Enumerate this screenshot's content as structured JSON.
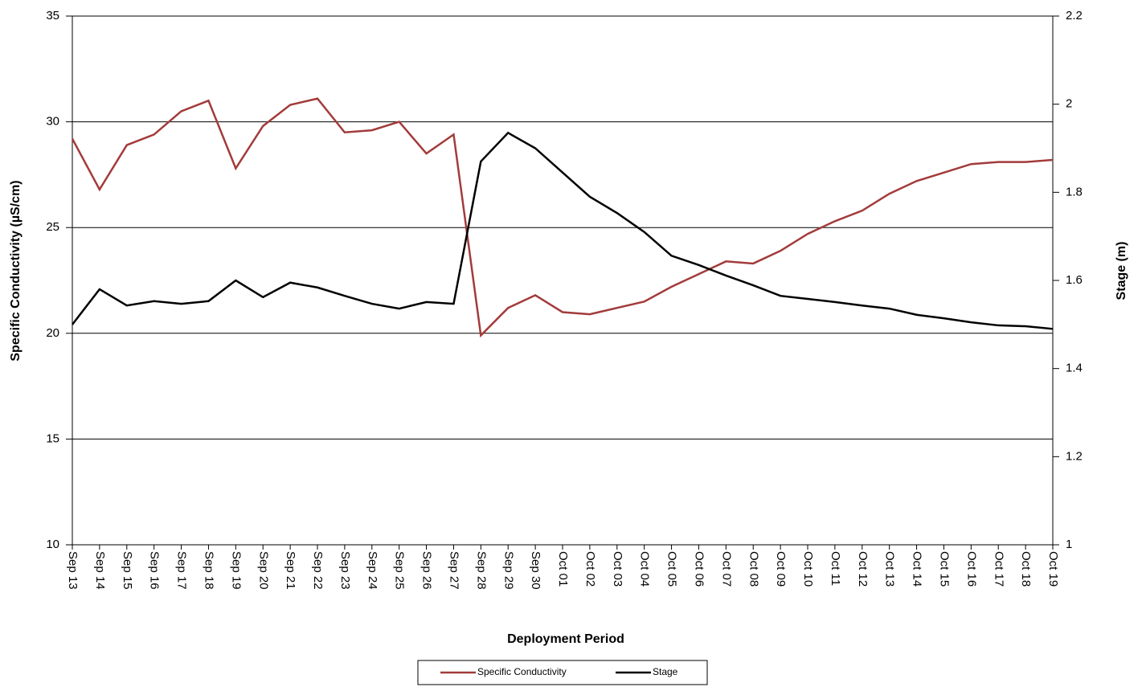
{
  "chart_data": {
    "type": "line",
    "xlabel": "Deployment Period",
    "ylabel": "Specific Conductivity  (µS/cm)",
    "y2label": "Stage (m)",
    "categories": [
      "Sep 13",
      "Sep 14",
      "Sep 15",
      "Sep 16",
      "Sep 17",
      "Sep 18",
      "Sep 19",
      "Sep 20",
      "Sep 21",
      "Sep 22",
      "Sep 23",
      "Sep 24",
      "Sep 25",
      "Sep 26",
      "Sep 27",
      "Sep 28",
      "Sep 29",
      "Sep 30",
      "Oct 01",
      "Oct 02",
      "Oct 03",
      "Oct 04",
      "Oct 05",
      "Oct 06",
      "Oct 07",
      "Oct 08",
      "Oct 09",
      "Oct 10",
      "Oct 11",
      "Oct 12",
      "Oct 13",
      "Oct 14",
      "Oct 15",
      "Oct 16",
      "Oct 17",
      "Oct 18",
      "Oct 19"
    ],
    "series": [
      {
        "name": "Specific Conductivity",
        "color": "#a33b3b",
        "axis": "y",
        "values": [
          29.2,
          26.8,
          28.9,
          29.4,
          30.5,
          31.0,
          27.8,
          29.8,
          30.8,
          31.1,
          29.5,
          29.6,
          30.0,
          28.5,
          29.4,
          19.9,
          21.2,
          21.8,
          21.0,
          20.9,
          21.2,
          21.5,
          22.2,
          22.8,
          23.4,
          23.3,
          23.9,
          24.7,
          25.3,
          25.8,
          26.6,
          27.2,
          27.6,
          28.0,
          28.1,
          28.1,
          28.2
        ]
      },
      {
        "name": "Stage",
        "color": "#000000",
        "axis": "y2",
        "values": [
          1.5,
          1.58,
          1.543,
          1.553,
          1.547,
          1.553,
          1.6,
          1.562,
          1.595,
          1.584,
          1.565,
          1.547,
          1.536,
          1.551,
          1.547,
          1.87,
          1.935,
          1.9,
          1.845,
          1.79,
          1.753,
          1.71,
          1.656,
          1.635,
          1.611,
          1.589,
          1.565,
          1.558,
          1.551,
          1.543,
          1.536,
          1.522,
          1.514,
          1.505,
          1.498,
          1.496,
          1.49
        ]
      }
    ],
    "ylim": [
      10,
      35
    ],
    "yticks": [
      10,
      15,
      20,
      25,
      30,
      35
    ],
    "y2lim": [
      1,
      2.2
    ],
    "y2ticks": [
      1,
      1.2,
      1.4,
      1.6,
      1.8,
      2,
      2.2
    ],
    "grid": true
  }
}
